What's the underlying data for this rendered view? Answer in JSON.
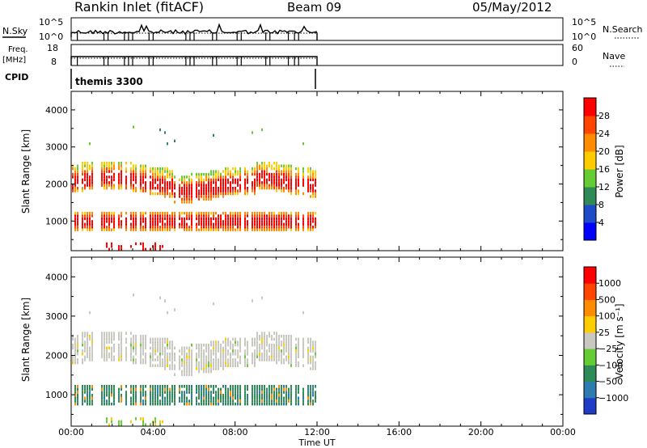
{
  "header": {
    "station": "Rankin Inlet (fitACF)",
    "beam": "Beam 09",
    "date": "05/May/2012"
  },
  "top_panels": {
    "nsky_label": "N.Sky",
    "nsearch_label": "N.Search",
    "freq_label": "Freq.",
    "freq_unit": "[MHz]",
    "nave_label": "Nave",
    "cpid_label": "CPID",
    "cpid_value": "themis 3300",
    "nsky_ticks": [
      "10^5",
      "10^0"
    ],
    "nsearch_ticks": [
      "10^5",
      "10^0"
    ],
    "freq_ticks": [
      "18",
      "8"
    ],
    "nave_ticks": [
      "60",
      "0"
    ]
  },
  "chart_data": [
    {
      "type": "heatmap",
      "name": "power",
      "ylabel": "Slant Range [km]",
      "xlabel": "",
      "colorbar_label": "Power [dB]",
      "y_ticks": [
        "4000",
        "3000",
        "2000",
        "1000"
      ],
      "y_range": [
        200,
        4500
      ],
      "x_range_hours": [
        0,
        24
      ],
      "data_end_hour": 12,
      "colorbar_levels": [
        "28",
        "24",
        "20",
        "16",
        "12",
        "8",
        "4"
      ],
      "colors": [
        "#0000ff",
        "#1e4cc8",
        "#2e8b57",
        "#66cc33",
        "#ffcc00",
        "#ff8c00",
        "#ff4500",
        "#ff0000"
      ]
    },
    {
      "type": "heatmap",
      "name": "velocity",
      "ylabel": "Slant Range [km]",
      "xlabel": "Time UT",
      "colorbar_label": "Velocity [m s⁻¹]",
      "y_ticks": [
        "4000",
        "3000",
        "2000",
        "1000"
      ],
      "y_range": [
        200,
        4500
      ],
      "x_ticks": [
        "00:00",
        "04:00",
        "08:00",
        "12:00",
        "16:00",
        "20:00",
        "00:00"
      ],
      "x_range_hours": [
        0,
        24
      ],
      "data_end_hour": 12,
      "colorbar_levels": [
        "1000",
        "500",
        "100",
        "25",
        "−25",
        "−100",
        "−500",
        "−1000"
      ],
      "colors": [
        "#1e3cc8",
        "#2e7bb0",
        "#2e8b57",
        "#66cc33",
        "#c8c8c0",
        "#ffcc00",
        "#ff8c00",
        "#ff4500",
        "#ff0000"
      ]
    }
  ]
}
